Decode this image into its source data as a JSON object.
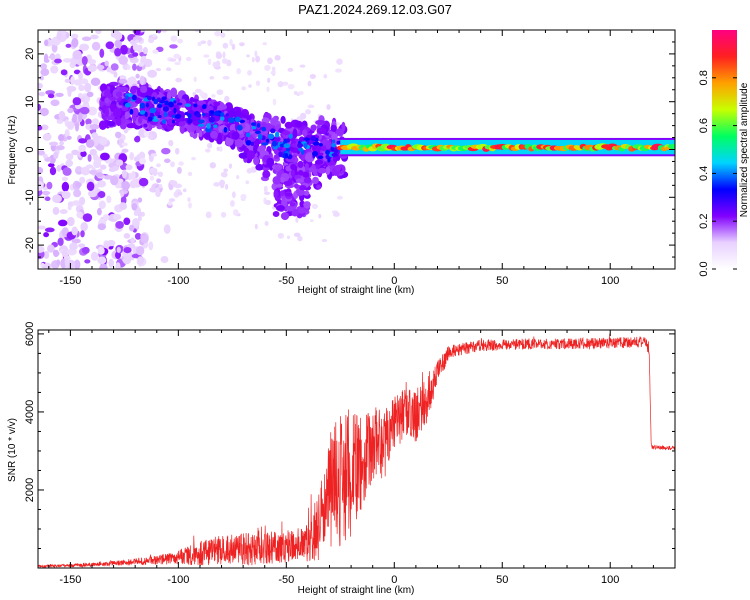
{
  "title": "PAZ1.2024.269.12.03.G07",
  "chart_data": [
    {
      "type": "heatmap",
      "xlabel": "Height of straight line (km)",
      "ylabel": "Frequency (Hz)",
      "xlim": [
        -165,
        130
      ],
      "ylim": [
        -25,
        25
      ],
      "xticks": [
        -150,
        -100,
        -50,
        0,
        50,
        100
      ],
      "yticks": [
        -20,
        -10,
        0,
        10,
        20
      ],
      "colorbar": {
        "label": "Normalized spectral amplitude",
        "range": [
          0,
          1
        ],
        "ticks": [
          "0.0",
          "0.2",
          "0.4",
          "0.6",
          "0.8"
        ],
        "colormap": [
          "#ffffff",
          "#e8d0ff",
          "#8000ff",
          "#0000ff",
          "#00d4ff",
          "#00ff60",
          "#c8ff00",
          "#ffa000",
          "#ff2020",
          "#ff0080"
        ]
      },
      "ridge": [
        {
          "x": -125,
          "f": 9
        },
        {
          "x": -100,
          "f": 8
        },
        {
          "x": -75,
          "f": 5
        },
        {
          "x": -50,
          "f": 1
        },
        {
          "x": -25,
          "f": 0
        },
        {
          "x": 0,
          "f": 0.5
        },
        {
          "x": 130,
          "f": 0.5
        }
      ]
    },
    {
      "type": "line",
      "xlabel": "Height of straight line (km)",
      "ylabel": "SNR (10 * v/v)",
      "xlim": [
        -165,
        130
      ],
      "ylim": [
        0,
        6100
      ],
      "xticks": [
        -150,
        -100,
        -50,
        0,
        50,
        100
      ],
      "yticks": [
        2000,
        4000,
        6000
      ],
      "line_color": "#ee2222",
      "series": [
        {
          "x": [
            -165,
            -150,
            -130,
            -110,
            -100,
            -90,
            -80,
            -70,
            -60,
            -50,
            -40,
            -35,
            -30,
            -25,
            -20,
            -15,
            -10,
            -5,
            0,
            5,
            10,
            15,
            20,
            25,
            30,
            40,
            50,
            60,
            70,
            80,
            90,
            100,
            110,
            116,
            118,
            119,
            125,
            130
          ],
          "y": [
            40,
            60,
            120,
            200,
            280,
            380,
            450,
            480,
            500,
            560,
            620,
            1100,
            1900,
            2500,
            2400,
            2700,
            3200,
            3100,
            3800,
            3900,
            3900,
            4300,
            5000,
            5500,
            5600,
            5700,
            5720,
            5740,
            5740,
            5750,
            5760,
            5770,
            5780,
            5800,
            5600,
            3100,
            3080,
            3080
          ],
          "noise": [
            30,
            40,
            60,
            120,
            180,
            320,
            400,
            420,
            420,
            400,
            500,
            900,
            1500,
            2000,
            1600,
            1200,
            1000,
            900,
            700,
            700,
            700,
            600,
            300,
            200,
            160,
            150,
            140,
            140,
            140,
            140,
            140,
            140,
            140,
            140,
            200,
            50,
            50,
            50
          ]
        }
      ]
    }
  ]
}
